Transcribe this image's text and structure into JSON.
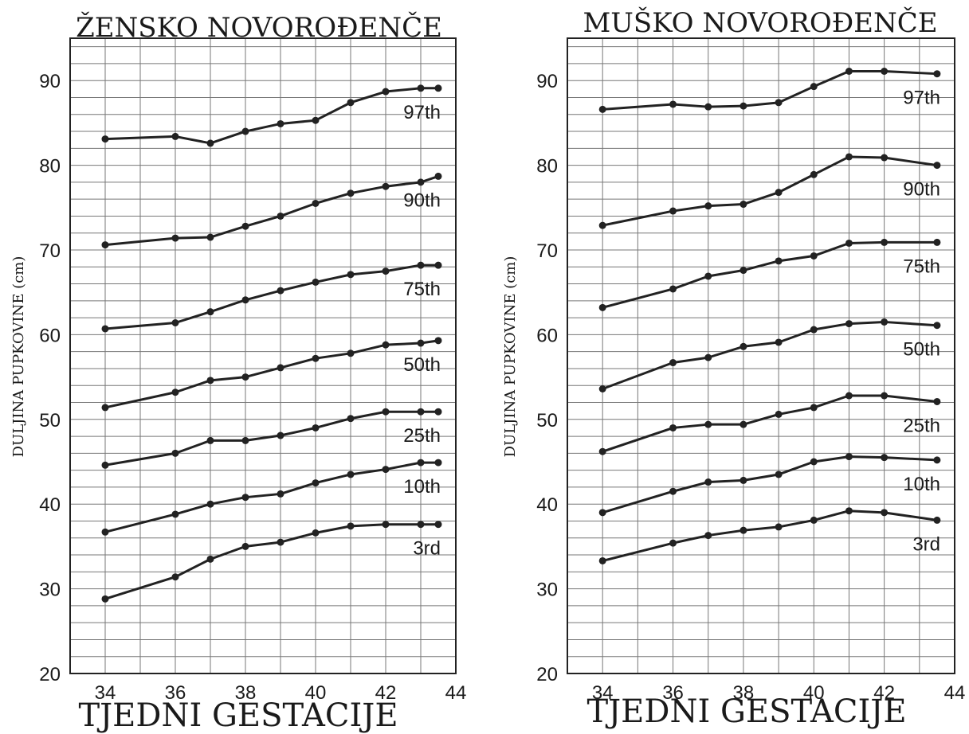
{
  "chart_data": [
    {
      "type": "line",
      "title": "ŽENSKO NOVOROĐENČE",
      "xlabel": "TJEDNI GESTACIJE",
      "ylabel": "DULJINA PUPKOVINE (cm)",
      "xlim": [
        33,
        44
      ],
      "ylim": [
        20,
        95
      ],
      "xticks": [
        34,
        36,
        38,
        40,
        42,
        44
      ],
      "yticks": [
        20,
        30,
        40,
        50,
        60,
        70,
        80,
        90
      ],
      "grid": true,
      "x": [
        34,
        36,
        37,
        38,
        39,
        40,
        41,
        42,
        43,
        43.5
      ],
      "series": [
        {
          "name": "97th",
          "values": [
            83.1,
            83.4,
            82.6,
            84.0,
            84.9,
            85.3,
            87.4,
            88.7,
            89.1,
            89.1
          ]
        },
        {
          "name": "90th",
          "values": [
            70.6,
            71.4,
            71.5,
            72.8,
            74.0,
            75.5,
            76.7,
            77.5,
            78.0,
            78.7
          ]
        },
        {
          "name": "75th",
          "values": [
            60.7,
            61.4,
            62.7,
            64.1,
            65.2,
            66.2,
            67.1,
            67.5,
            68.2,
            68.2
          ]
        },
        {
          "name": "50th",
          "values": [
            51.4,
            53.2,
            54.6,
            55.0,
            56.1,
            57.2,
            57.8,
            58.8,
            59.0,
            59.3
          ]
        },
        {
          "name": "25th",
          "values": [
            44.6,
            46.0,
            47.5,
            47.5,
            48.1,
            49.0,
            50.1,
            50.9,
            50.9,
            50.9
          ]
        },
        {
          "name": "10th",
          "values": [
            36.7,
            38.8,
            40.0,
            40.8,
            41.2,
            42.5,
            43.5,
            44.1,
            44.9,
            44.9
          ]
        },
        {
          "name": "3rd",
          "values": [
            28.8,
            31.4,
            33.5,
            35.0,
            35.5,
            36.6,
            37.4,
            37.6,
            37.6,
            37.6
          ]
        }
      ]
    },
    {
      "type": "line",
      "title": "MUŠKO NOVOROĐENČE",
      "xlabel": "TJEDNI GESTACIJE",
      "ylabel": "DULJINA PUPKOVINE (cm)",
      "xlim": [
        33,
        44
      ],
      "ylim": [
        20,
        95
      ],
      "xticks": [
        34,
        36,
        38,
        40,
        42,
        44
      ],
      "yticks": [
        20,
        30,
        40,
        50,
        60,
        70,
        80,
        90
      ],
      "grid": true,
      "x": [
        34,
        36,
        37,
        38,
        39,
        40,
        41,
        42,
        43.5
      ],
      "series": [
        {
          "name": "97th",
          "values": [
            86.6,
            87.2,
            86.9,
            87.0,
            87.4,
            89.3,
            91.1,
            91.1,
            90.8
          ]
        },
        {
          "name": "90th",
          "values": [
            72.9,
            74.6,
            75.2,
            75.4,
            76.8,
            78.9,
            81.0,
            80.9,
            80.0
          ]
        },
        {
          "name": "75th",
          "values": [
            63.2,
            65.4,
            66.9,
            67.6,
            68.7,
            69.3,
            70.8,
            70.9,
            70.9
          ]
        },
        {
          "name": "50th",
          "values": [
            53.6,
            56.7,
            57.3,
            58.6,
            59.1,
            60.6,
            61.3,
            61.5,
            61.1
          ]
        },
        {
          "name": "25th",
          "values": [
            46.2,
            49.0,
            49.4,
            49.4,
            50.6,
            51.4,
            52.8,
            52.8,
            52.1
          ]
        },
        {
          "name": "10th",
          "values": [
            39.0,
            41.5,
            42.6,
            42.8,
            43.5,
            45.0,
            45.6,
            45.5,
            45.2
          ]
        },
        {
          "name": "3rd",
          "values": [
            33.3,
            35.4,
            36.3,
            36.9,
            37.3,
            38.1,
            39.2,
            39.0,
            38.1
          ]
        }
      ]
    }
  ]
}
